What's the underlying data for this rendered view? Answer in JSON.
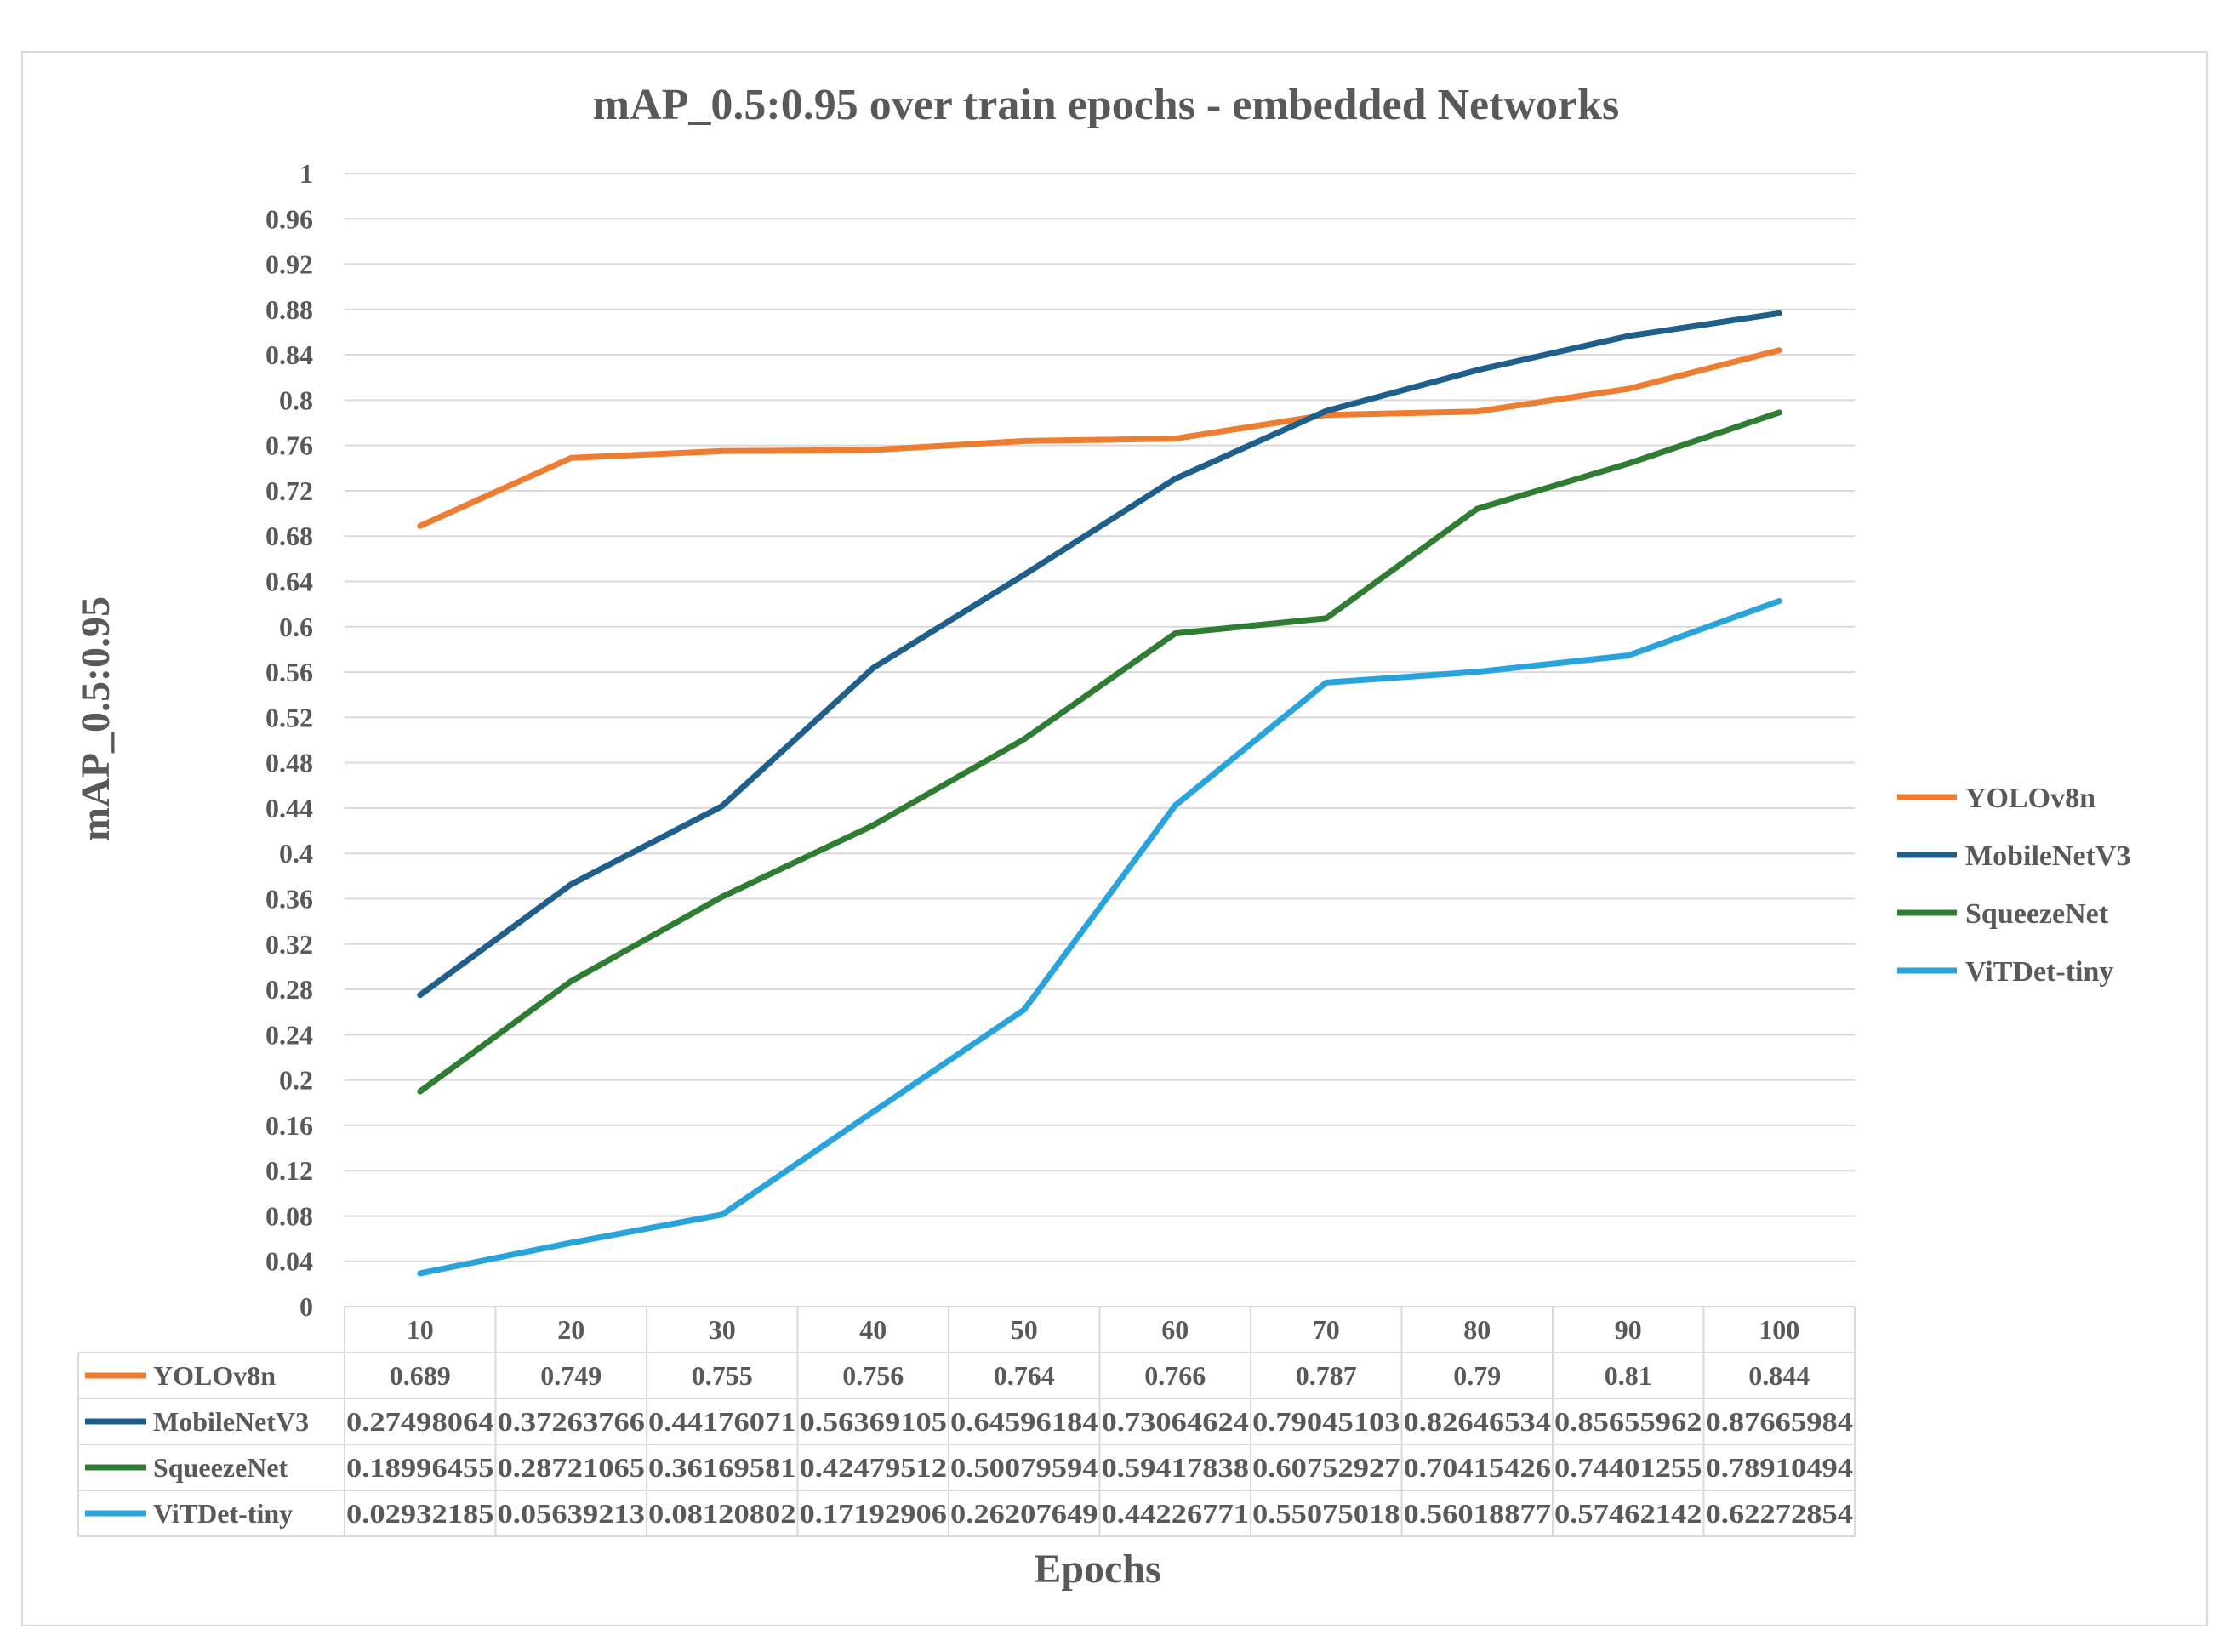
{
  "chart_data": {
    "type": "line",
    "title": "mAP_0.5:0.95 over train epochs - embedded Networks",
    "xlabel": "Epochs",
    "ylabel": "mAP_0.5:0.95",
    "ylim": [
      0,
      1
    ],
    "y_ticks": [
      "0",
      "0.04",
      "0.08",
      "0.12",
      "0.16",
      "0.2",
      "0.24",
      "0.28",
      "0.32",
      "0.36",
      "0.4",
      "0.44",
      "0.48",
      "0.52",
      "0.56",
      "0.6",
      "0.64",
      "0.68",
      "0.72",
      "0.76",
      "0.8",
      "0.84",
      "0.88",
      "0.92",
      "0.96",
      "1"
    ],
    "categories": [
      "10",
      "20",
      "30",
      "40",
      "50",
      "60",
      "70",
      "80",
      "90",
      "100"
    ],
    "grid": true,
    "legend_position": "right",
    "data_table": true,
    "series": [
      {
        "name": "YOLOv8n",
        "color": "#ED7D31",
        "values": [
          0.689,
          0.749,
          0.755,
          0.756,
          0.764,
          0.766,
          0.787,
          0.79,
          0.81,
          0.844
        ],
        "labels": [
          "0.689",
          "0.749",
          "0.755",
          "0.756",
          "0.764",
          "0.766",
          "0.787",
          "0.79",
          "0.81",
          "0.844"
        ]
      },
      {
        "name": "MobileNetV3",
        "color": "#1F5F8B",
        "values": [
          0.27498064,
          0.37263766,
          0.44176071,
          0.56369105,
          0.64596184,
          0.73064624,
          0.79045103,
          0.82646534,
          0.85655962,
          0.87665984
        ],
        "labels": [
          "0.27498064",
          "0.37263766",
          "0.44176071",
          "0.56369105",
          "0.64596184",
          "0.73064624",
          "0.79045103",
          "0.82646534",
          "0.85655962",
          "0.87665984"
        ]
      },
      {
        "name": "SqueezeNet",
        "color": "#2E7D32",
        "values": [
          0.18996455,
          0.28721065,
          0.36169581,
          0.42479512,
          0.50079594,
          0.59417838,
          0.60752927,
          0.70415426,
          0.74401255,
          0.78910494
        ],
        "labels": [
          "0.18996455",
          "0.28721065",
          "0.36169581",
          "0.42479512",
          "0.50079594",
          "0.59417838",
          "0.60752927",
          "0.70415426",
          "0.74401255",
          "0.78910494"
        ]
      },
      {
        "name": "ViTDet-tiny",
        "color": "#29A3DB",
        "values": [
          0.02932185,
          0.05639213,
          0.08120802,
          0.17192906,
          0.26207649,
          0.44226771,
          0.55075018,
          0.56018877,
          0.57462142,
          0.62272854
        ],
        "labels": [
          "0.02932185",
          "0.05639213",
          "0.08120802",
          "0.17192906",
          "0.26207649",
          "0.44226771",
          "0.55075018",
          "0.56018877",
          "0.57462142",
          "0.62272854"
        ]
      }
    ]
  }
}
